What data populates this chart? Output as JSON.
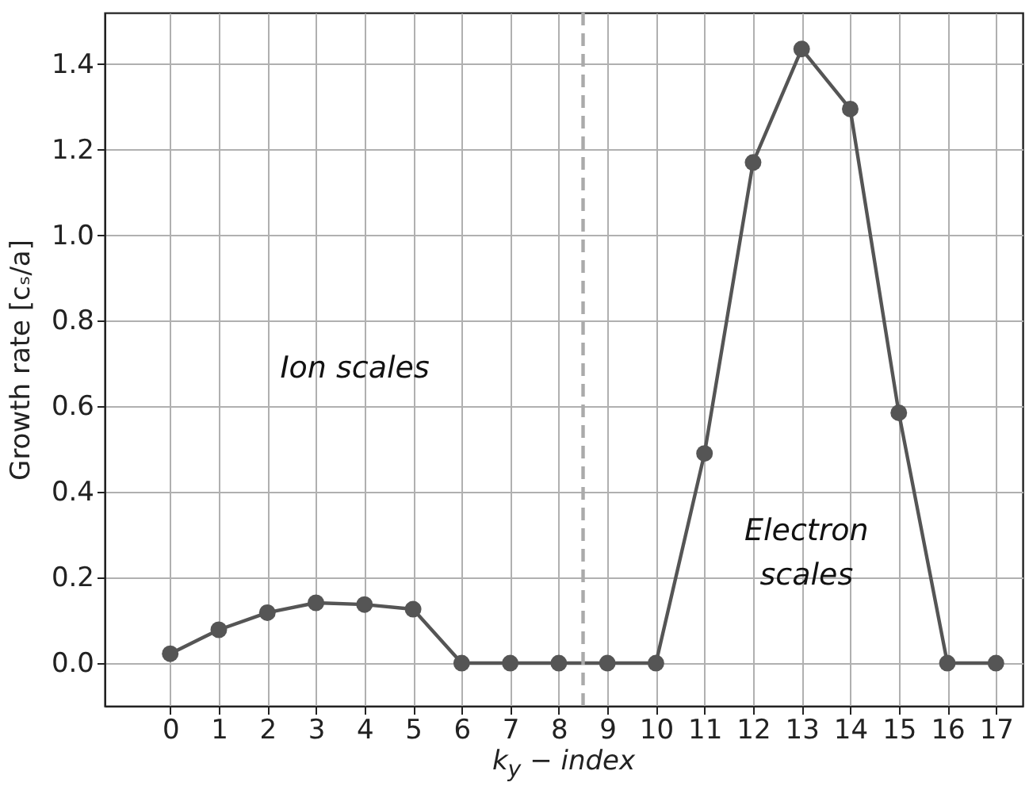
{
  "chart_data": {
    "type": "line",
    "xlabel": "k$_{y}$ − index",
    "ylabel": "Growth rate [cₛ/a]",
    "x": [
      0,
      1,
      2,
      3,
      4,
      5,
      6,
      7,
      8,
      9,
      10,
      11,
      12,
      13,
      14,
      15,
      16,
      17
    ],
    "series": [
      {
        "color": "#555555",
        "values": [
          0.022,
          0.078,
          0.118,
          0.141,
          0.137,
          0.126,
          0,
          0,
          0,
          0,
          0,
          0.49,
          1.17,
          1.435,
          1.295,
          0.585,
          0,
          0
        ]
      }
    ],
    "xlim": [
      -1.35,
      17.55
    ],
    "ylim": [
      -0.1,
      1.52
    ],
    "xticks": [
      0,
      1,
      2,
      3,
      4,
      5,
      6,
      7,
      8,
      9,
      10,
      11,
      12,
      13,
      14,
      15,
      16,
      17
    ],
    "yticks": [
      {
        "value": 0,
        "label": "0.0"
      },
      0.2,
      0.4,
      0.6,
      0.8,
      {
        "value": 1,
        "label": "1.0"
      },
      1.2,
      1.4
    ],
    "ref_lines": [
      {
        "axis": "x",
        "value": 8.5,
        "color": "#aaaaaa",
        "line_style": "dashed"
      }
    ],
    "annotations": [
      "Ion scales",
      "Electron\nscales"
    ],
    "grid": true,
    "marker": "circle",
    "line_style": "solid"
  }
}
